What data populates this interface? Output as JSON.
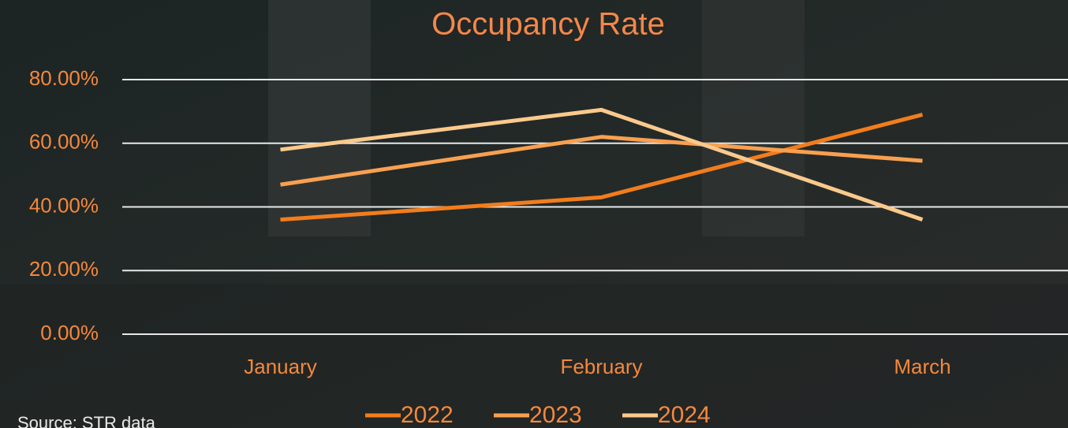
{
  "chart_data": {
    "type": "line",
    "title": "Occupancy Rate",
    "categories": [
      "January",
      "February",
      "March"
    ],
    "series": [
      {
        "name": "2022",
        "color": "#f27d1c",
        "values": [
          36,
          43,
          69
        ]
      },
      {
        "name": "2023",
        "color": "#f8a050",
        "values": [
          47,
          62,
          54.5
        ]
      },
      {
        "name": "2024",
        "color": "#fbc98c",
        "values": [
          58,
          70.5,
          36
        ]
      }
    ],
    "ylim": [
      0,
      80
    ],
    "yticks": [
      {
        "value": 0,
        "label": "0.00%"
      },
      {
        "value": 20,
        "label": "20.00%"
      },
      {
        "value": 40,
        "label": "40.00%"
      },
      {
        "value": 60,
        "label": "60.00%"
      },
      {
        "value": 80,
        "label": "80.00%"
      }
    ],
    "grid": true,
    "legend": "bottom",
    "source": "Source: STR data"
  }
}
